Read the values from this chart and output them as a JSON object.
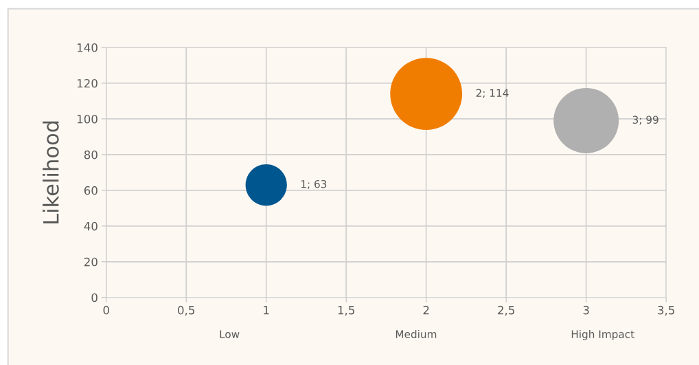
{
  "chart_data": {
    "type": "bubble",
    "ylabel": "Likelihood",
    "x": [
      1,
      2,
      3
    ],
    "values": [
      63,
      114,
      99
    ],
    "sizes": [
      0.33,
      1,
      0.82
    ],
    "colors": [
      "#00578f",
      "#f07d00",
      "#b0b0b0"
    ],
    "value_labels": [
      "1; 63",
      "2; 114",
      "3; 99"
    ],
    "xlim": [
      0,
      3.5
    ],
    "xticks": [
      0,
      {
        "value": 0.5,
        "label": "0,5"
      },
      1,
      {
        "value": 1.5,
        "label": "1,5"
      },
      2,
      {
        "value": 2.5,
        "label": "2,5"
      },
      3,
      {
        "value": 3.5,
        "label": "3,5"
      }
    ],
    "ylim": [
      0,
      140
    ],
    "yticks": [
      0,
      20,
      40,
      60,
      80,
      100,
      120,
      140
    ],
    "grid": true,
    "annotations": [
      "Low",
      "Medium",
      "High Impact"
    ]
  }
}
